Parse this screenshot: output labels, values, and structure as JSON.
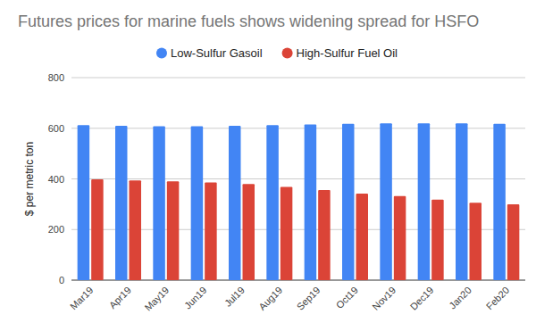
{
  "chart_data": {
    "type": "bar",
    "title": "Futures prices for marine fuels shows widening spread for HSFO",
    "y_label": "$ per metric ton",
    "categories": [
      "Mar19",
      "Apr19",
      "May19",
      "Jun19",
      "Jul19",
      "Aug19",
      "Sep19",
      "Oct19",
      "Nov19",
      "Dec19",
      "Jan20",
      "Feb20"
    ],
    "series": [
      {
        "name": "Low-Sulfur Gasoil",
        "color": "#4285f4",
        "values": [
          612,
          610,
          608,
          608,
          610,
          612,
          615,
          618,
          619,
          619,
          619,
          618
        ]
      },
      {
        "name": "High-Sulfur Fuel Oil",
        "color": "#db4437",
        "values": [
          398,
          394,
          390,
          386,
          380,
          368,
          356,
          342,
          332,
          318,
          306,
          300
        ]
      }
    ],
    "ylim": [
      0,
      800
    ],
    "yticks": [
      0,
      200,
      400,
      600,
      800
    ],
    "grid": true,
    "legend": "top"
  }
}
